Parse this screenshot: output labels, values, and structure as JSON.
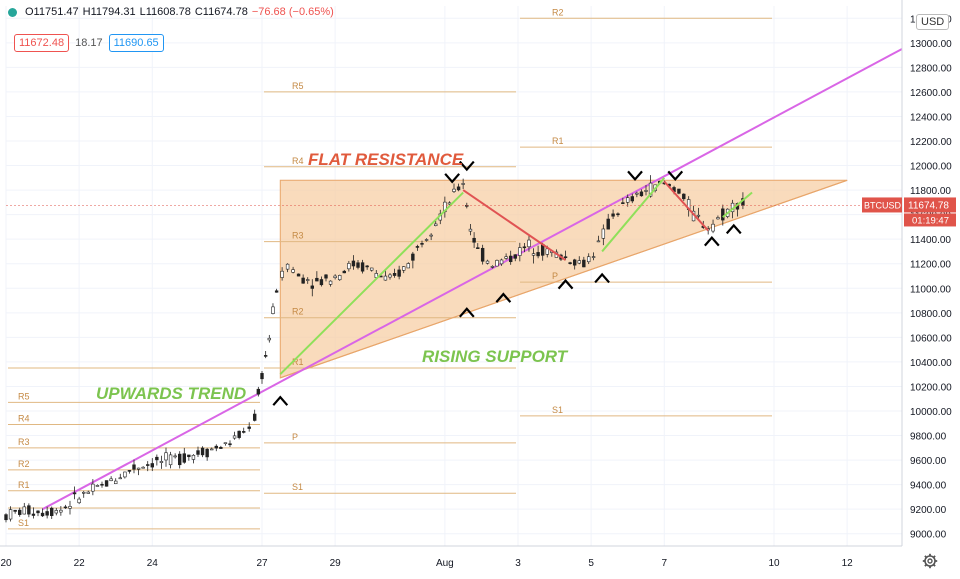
{
  "header": {
    "open_label": "O11751.47",
    "high_label": "H11794.31",
    "low_label": "L11608.78",
    "close_label": "C11674.78",
    "change_label": "−76.68 (−0.65%)",
    "bid_price": "11672.48",
    "spread": "18.17",
    "ask_price": "11690.65",
    "currency_button": "USD"
  },
  "colors": {
    "pivot_line": "#e0b882",
    "pivot_label": "#c58a45",
    "triangle_fill": "#f7cfa6",
    "triangle_edge": "#e8a66b",
    "trend_magenta": "#d966e6",
    "trend_green": "#8fe05a",
    "swing_red": "#e05353",
    "annotation_red": "#e05a3c",
    "annotation_green": "#7cc44f",
    "price_tag": "#e0544a"
  },
  "annotations": {
    "flat_resistance": "FLAT RESISTANCE",
    "rising_support": "RISING SUPPORT",
    "upwards_trend": "UPWARDS TREND"
  },
  "price_tag": {
    "symbol": "BTCUSD",
    "price": "11674.78",
    "countdown": "01:19:47"
  },
  "chart_data": {
    "type": "candlestick",
    "symbol": "BTCUSD",
    "currency": "USD",
    "ylim": [
      8900,
      13300
    ],
    "y_ticks": [
      9000,
      9200,
      9400,
      9600,
      9800,
      10000,
      10200,
      10400,
      10600,
      10800,
      11000,
      11200,
      11400,
      11600,
      11800,
      12000,
      12200,
      12400,
      12600,
      12800,
      13000,
      13200
    ],
    "y_tick_labels": [
      "9000.00",
      "9200.00",
      "9400.00",
      "9600.00",
      "9800.00",
      "10000.00",
      "10200.00",
      "10400.00",
      "10600.00",
      "10800.00",
      "11000.00",
      "11200.00",
      "11400.00",
      "11600.00",
      "11800.00",
      "12000.00",
      "12200.00",
      "12400.00",
      "12600.00",
      "12800.00",
      "13000.00",
      "13200.00"
    ],
    "x_ticks": [
      {
        "label": "20",
        "day": 0
      },
      {
        "label": "22",
        "day": 2
      },
      {
        "label": "24",
        "day": 4
      },
      {
        "label": "27",
        "day": 7
      },
      {
        "label": "29",
        "day": 9
      },
      {
        "label": "Aug",
        "day": 12
      },
      {
        "label": "3",
        "day": 14
      },
      {
        "label": "5",
        "day": 16
      },
      {
        "label": "7",
        "day": 18
      },
      {
        "label": "10",
        "day": 21
      },
      {
        "label": "12",
        "day": 23
      }
    ],
    "xlim": [
      0,
      24.5
    ],
    "price_path": [
      [
        0.0,
        9150
      ],
      [
        0.5,
        9190
      ],
      [
        1.0,
        9180
      ],
      [
        1.5,
        9200
      ],
      [
        2.0,
        9300
      ],
      [
        2.5,
        9370
      ],
      [
        3.0,
        9450
      ],
      [
        3.5,
        9540
      ],
      [
        4.0,
        9580
      ],
      [
        4.5,
        9600
      ],
      [
        5.0,
        9640
      ],
      [
        5.5,
        9680
      ],
      [
        6.0,
        9720
      ],
      [
        6.5,
        9820
      ],
      [
        6.8,
        9950
      ],
      [
        7.0,
        10300
      ],
      [
        7.2,
        10600
      ],
      [
        7.4,
        11000
      ],
      [
        7.7,
        11200
      ],
      [
        8.0,
        11100
      ],
      [
        8.5,
        11050
      ],
      [
        9.0,
        11100
      ],
      [
        9.5,
        11200
      ],
      [
        10.0,
        11150
      ],
      [
        10.5,
        11050
      ],
      [
        11.0,
        11200
      ],
      [
        11.5,
        11450
      ],
      [
        12.0,
        11650
      ],
      [
        12.5,
        11870
      ],
      [
        12.7,
        11500
      ],
      [
        12.9,
        11300
      ],
      [
        13.3,
        11200
      ],
      [
        13.8,
        11250
      ],
      [
        14.3,
        11350
      ],
      [
        14.8,
        11300
      ],
      [
        15.3,
        11250
      ],
      [
        15.8,
        11200
      ],
      [
        16.2,
        11350
      ],
      [
        16.6,
        11600
      ],
      [
        17.0,
        11700
      ],
      [
        17.5,
        11800
      ],
      [
        18.0,
        11850
      ],
      [
        18.4,
        11800
      ],
      [
        18.8,
        11600
      ],
      [
        19.2,
        11500
      ],
      [
        19.6,
        11600
      ],
      [
        20.0,
        11700
      ],
      [
        20.3,
        11680
      ]
    ],
    "close": 11674.78,
    "pivot_levels": [
      {
        "label": "R5",
        "start": 0,
        "end": 7,
        "value": 10070
      },
      {
        "label": "R4",
        "start": 0,
        "end": 7,
        "value": 9890
      },
      {
        "label": "R3",
        "start": 0,
        "end": 7,
        "value": 9700
      },
      {
        "label": "R2",
        "start": 0,
        "end": 7,
        "value": 9520
      },
      {
        "label": "R1",
        "start": 0,
        "end": 7,
        "value": 9350
      },
      {
        "label": "S1",
        "start": 0,
        "end": 7,
        "value": 9040
      },
      {
        "label": "R5",
        "start": 7,
        "end": 14,
        "value": 12600
      },
      {
        "label": "R4",
        "start": 7,
        "end": 14,
        "value": 11990
      },
      {
        "label": "R3",
        "start": 7,
        "end": 14,
        "value": 11380
      },
      {
        "label": "R2",
        "start": 7,
        "end": 14,
        "value": 10760
      },
      {
        "label": "R1",
        "start": 7,
        "end": 14,
        "value": 10350
      },
      {
        "label": "P",
        "start": 7,
        "end": 14,
        "value": 9740
      },
      {
        "label": "S1",
        "start": 7,
        "end": 14,
        "value": 9330
      },
      {
        "label": "R2",
        "start": 14,
        "end": 21,
        "value": 13200
      },
      {
        "label": "R1",
        "start": 14,
        "end": 21,
        "value": 12150
      },
      {
        "label": "P",
        "start": 14,
        "end": 21,
        "value": 11050
      },
      {
        "label": "S1",
        "start": 14,
        "end": 21,
        "value": 9960
      }
    ],
    "pivot_labels_unnamed": [
      {
        "label": "",
        "start": 0,
        "end": 7,
        "value": 10350
      },
      {
        "label": "",
        "start": 0,
        "end": 7,
        "value": 9210
      }
    ],
    "triangle": {
      "points": [
        [
          7.5,
          11880
        ],
        [
          23.0,
          11880
        ],
        [
          7.5,
          10270
        ]
      ]
    },
    "support_line": {
      "from": [
        7.5,
        10270
      ],
      "to": [
        23.0,
        11880
      ]
    },
    "upward_trend_line": {
      "from": [
        1.0,
        9200
      ],
      "to": [
        24.5,
        12950
      ]
    },
    "green_lines": [
      {
        "from": [
          7.5,
          10300
        ],
        "to": [
          12.5,
          11780
        ]
      },
      {
        "from": [
          16.3,
          11300
        ],
        "to": [
          18.0,
          11900
        ]
      },
      {
        "from": [
          19.6,
          11580
        ],
        "to": [
          20.4,
          11780
        ]
      }
    ],
    "red_lines": [
      {
        "from": [
          12.5,
          11800
        ],
        "to": [
          15.3,
          11230
        ]
      },
      {
        "from": [
          18.0,
          11870
        ],
        "to": [
          19.2,
          11470
        ]
      }
    ],
    "peak_markers": [
      [
        12.2,
        11900
      ],
      [
        12.6,
        12000
      ],
      [
        17.2,
        11920
      ],
      [
        18.3,
        11920
      ]
    ],
    "trough_markers": [
      [
        7.5,
        10080
      ],
      [
        12.6,
        10800
      ],
      [
        13.6,
        10920
      ],
      [
        15.3,
        11030
      ],
      [
        16.3,
        11080
      ],
      [
        19.3,
        11380
      ],
      [
        19.9,
        11480
      ]
    ],
    "triangle_right_day": 23.0
  }
}
